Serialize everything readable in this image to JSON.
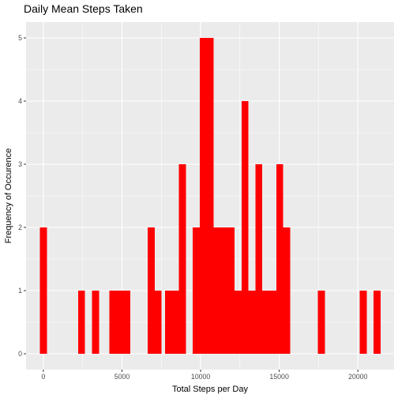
{
  "chart_data": {
    "type": "bar",
    "title": "Daily Mean Steps Taken",
    "xlabel": "Total Steps per Day",
    "ylabel": "Frequency of Occurence",
    "bin_width": 442,
    "xlim": [
      -1100,
      22300
    ],
    "ylim": [
      -0.25,
      5.25
    ],
    "x_ticks": [
      0,
      5000,
      10000,
      15000,
      20000
    ],
    "x_tick_labels": [
      "0",
      "5000",
      "10000",
      "15000",
      "20000"
    ],
    "y_ticks": [
      0,
      1,
      2,
      3,
      4,
      5
    ],
    "y_tick_labels": [
      "0",
      "1",
      "2",
      "3",
      "4",
      "5"
    ],
    "bar_color": "#ff0000",
    "panel_background": "#ebebeb",
    "grid_color": "#ffffff",
    "grid": true,
    "legend": "none",
    "bins": [
      {
        "x": 0,
        "count": 2
      },
      {
        "x": 2432,
        "count": 1
      },
      {
        "x": 3316,
        "count": 1
      },
      {
        "x": 4421,
        "count": 1
      },
      {
        "x": 4863,
        "count": 1
      },
      {
        "x": 5305,
        "count": 1
      },
      {
        "x": 6853,
        "count": 2
      },
      {
        "x": 7295,
        "count": 1
      },
      {
        "x": 7958,
        "count": 1
      },
      {
        "x": 8400,
        "count": 1
      },
      {
        "x": 8842,
        "count": 3
      },
      {
        "x": 9726,
        "count": 2
      },
      {
        "x": 10168,
        "count": 5
      },
      {
        "x": 10611,
        "count": 5
      },
      {
        "x": 11053,
        "count": 2
      },
      {
        "x": 11495,
        "count": 2
      },
      {
        "x": 11937,
        "count": 2
      },
      {
        "x": 12379,
        "count": 1
      },
      {
        "x": 12821,
        "count": 4
      },
      {
        "x": 13263,
        "count": 1
      },
      {
        "x": 13705,
        "count": 3
      },
      {
        "x": 14147,
        "count": 1
      },
      {
        "x": 14589,
        "count": 1
      },
      {
        "x": 15032,
        "count": 3
      },
      {
        "x": 15474,
        "count": 2
      },
      {
        "x": 17684,
        "count": 1
      },
      {
        "x": 20337,
        "count": 1
      },
      {
        "x": 21221,
        "count": 1
      }
    ]
  }
}
